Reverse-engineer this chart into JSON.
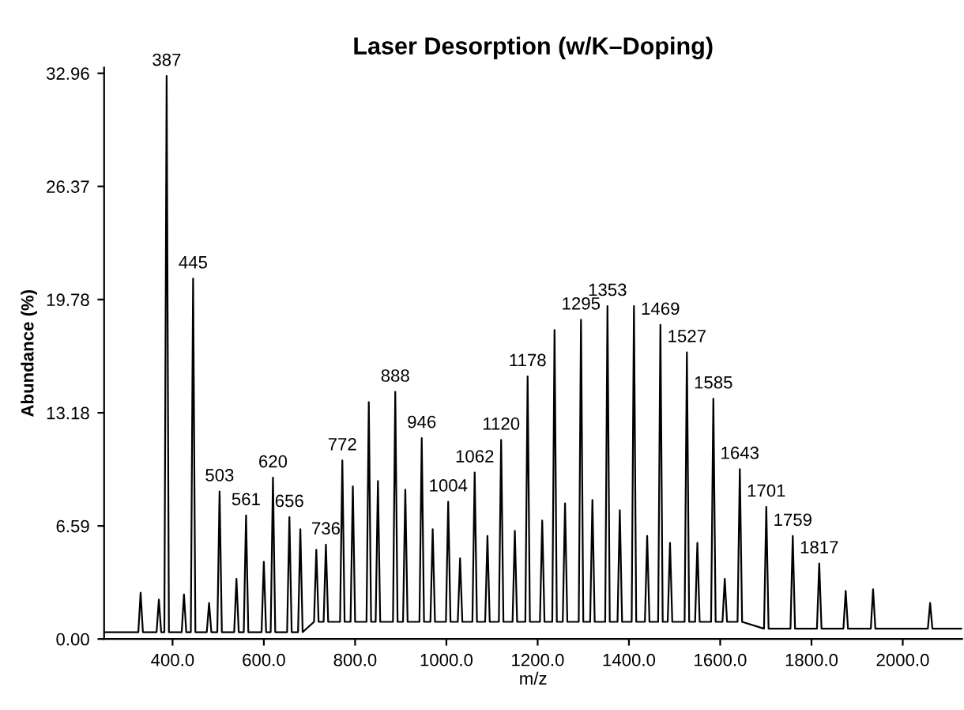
{
  "chart_data": {
    "type": "line",
    "title": "Laser Desorption (w/K–Doping)",
    "xlabel": "m/z",
    "ylabel": "Abundance (%)",
    "series": [
      {
        "color": "#000000",
        "x": [
          250,
          325,
          330,
          335,
          365,
          370,
          375,
          382,
          387,
          392,
          420,
          425,
          430,
          440,
          445,
          450,
          475,
          480,
          485,
          498,
          503,
          508,
          535,
          540,
          545,
          556,
          561,
          566,
          595,
          600,
          605,
          615,
          620,
          625,
          651,
          656,
          661,
          675,
          680,
          685,
          710,
          715,
          720,
          731,
          736,
          741,
          767,
          772,
          777,
          790,
          795,
          800,
          825,
          830,
          835,
          845,
          850,
          855,
          883,
          888,
          893,
          905,
          910,
          915,
          941,
          946,
          951,
          965,
          970,
          975,
          999,
          1004,
          1009,
          1025,
          1030,
          1035,
          1057,
          1062,
          1067,
          1085,
          1090,
          1095,
          1115,
          1120,
          1125,
          1145,
          1150,
          1155,
          1173,
          1178,
          1183,
          1205,
          1210,
          1215,
          1232,
          1237,
          1242,
          1255,
          1260,
          1265,
          1290,
          1295,
          1300,
          1315,
          1320,
          1325,
          1348,
          1353,
          1358,
          1375,
          1380,
          1385,
          1406,
          1411,
          1416,
          1435,
          1440,
          1445,
          1464,
          1469,
          1474,
          1485,
          1490,
          1495,
          1522,
          1527,
          1532,
          1545,
          1550,
          1555,
          1580,
          1585,
          1590,
          1605,
          1610,
          1615,
          1638,
          1643,
          1648,
          1696,
          1701,
          1706,
          1754,
          1759,
          1764,
          1812,
          1817,
          1822,
          1870,
          1875,
          1880,
          1930,
          1935,
          1940,
          2055,
          2060,
          2065,
          2130
        ],
        "values": [
          0.4,
          0.4,
          2.7,
          0.4,
          0.4,
          2.3,
          0.4,
          0.4,
          32.8,
          0.4,
          0.4,
          2.6,
          0.4,
          0.4,
          21.0,
          0.4,
          0.4,
          2.1,
          0.4,
          0.4,
          8.6,
          0.4,
          0.4,
          3.5,
          0.4,
          0.4,
          7.2,
          0.4,
          0.4,
          4.5,
          0.4,
          0.4,
          9.4,
          0.4,
          0.4,
          7.1,
          0.4,
          0.4,
          6.4,
          0.4,
          1.0,
          5.2,
          1.0,
          1.0,
          5.5,
          1.0,
          1.0,
          10.4,
          1.0,
          1.0,
          8.9,
          1.0,
          1.0,
          13.8,
          1.0,
          1.0,
          9.2,
          1.0,
          1.0,
          14.4,
          1.0,
          1.0,
          8.7,
          1.0,
          1.0,
          11.7,
          1.0,
          1.0,
          6.4,
          1.0,
          1.0,
          8.0,
          1.0,
          1.0,
          4.7,
          1.0,
          1.0,
          9.7,
          1.0,
          1.0,
          6.0,
          1.0,
          1.0,
          11.6,
          1.0,
          1.0,
          6.3,
          1.0,
          1.0,
          15.3,
          1.0,
          1.0,
          6.9,
          1.0,
          1.0,
          18.0,
          1.0,
          1.0,
          7.9,
          1.0,
          1.0,
          18.6,
          1.0,
          1.0,
          8.1,
          1.0,
          1.0,
          19.4,
          1.0,
          1.0,
          7.5,
          1.0,
          1.0,
          19.4,
          1.0,
          1.0,
          6.0,
          1.0,
          1.0,
          18.3,
          1.0,
          1.0,
          5.6,
          1.0,
          1.0,
          16.7,
          1.0,
          1.0,
          5.6,
          1.0,
          1.0,
          14.0,
          1.0,
          1.0,
          3.5,
          1.0,
          1.0,
          9.9,
          1.0,
          0.6,
          7.7,
          0.6,
          0.6,
          6.0,
          0.6,
          0.6,
          4.4,
          0.6,
          0.6,
          2.8,
          0.6,
          0.6,
          2.9,
          0.6,
          0.6,
          2.1,
          0.6,
          0.6
        ]
      }
    ],
    "annotations": [
      {
        "text": "387",
        "x": 387,
        "y": 32.8
      },
      {
        "text": "445",
        "x": 445,
        "y": 21.0
      },
      {
        "text": "503",
        "x": 503,
        "y": 8.6
      },
      {
        "text": "561",
        "x": 561,
        "y": 7.2
      },
      {
        "text": "620",
        "x": 620,
        "y": 9.4
      },
      {
        "text": "656",
        "x": 656,
        "y": 7.1
      },
      {
        "text": "736",
        "x": 736,
        "y": 5.5
      },
      {
        "text": "772",
        "x": 772,
        "y": 10.4
      },
      {
        "text": "888",
        "x": 888,
        "y": 14.4
      },
      {
        "text": "946",
        "x": 946,
        "y": 11.7
      },
      {
        "text": "1004",
        "x": 1004,
        "y": 8.0
      },
      {
        "text": "1062",
        "x": 1062,
        "y": 9.7
      },
      {
        "text": "1120",
        "x": 1120,
        "y": 11.6
      },
      {
        "text": "1178",
        "x": 1178,
        "y": 15.3
      },
      {
        "text": "1295",
        "x": 1295,
        "y": 18.6
      },
      {
        "text": "1353",
        "x": 1353,
        "y": 19.4
      },
      {
        "text": "1469",
        "x": 1469,
        "y": 18.3
      },
      {
        "text": "1527",
        "x": 1527,
        "y": 16.7
      },
      {
        "text": "1585",
        "x": 1585,
        "y": 14.0
      },
      {
        "text": "1643",
        "x": 1643,
        "y": 9.9
      },
      {
        "text": "1701",
        "x": 1701,
        "y": 7.7
      },
      {
        "text": "1759",
        "x": 1759,
        "y": 6.0
      },
      {
        "text": "1817",
        "x": 1817,
        "y": 4.4
      }
    ],
    "xlim": [
      250,
      2130
    ],
    "ylim": [
      0,
      33.3
    ],
    "xticks": [
      {
        "value": 400,
        "label": "400.0"
      },
      {
        "value": 600,
        "label": "600.0"
      },
      {
        "value": 800,
        "label": "800.0"
      },
      {
        "value": 1000,
        "label": "1000.0"
      },
      {
        "value": 1200,
        "label": "1200.0"
      },
      {
        "value": 1400,
        "label": "1400.0"
      },
      {
        "value": 1600,
        "label": "1600.0"
      },
      {
        "value": 1800,
        "label": "1800.0"
      },
      {
        "value": 2000,
        "label": "2000.0"
      }
    ],
    "yticks": [
      {
        "value": 0,
        "label": "0.00"
      },
      6.59,
      13.18,
      19.78,
      26.37,
      32.96
    ],
    "grid": false,
    "legend": false,
    "marker": "none",
    "line_style": "solid"
  }
}
